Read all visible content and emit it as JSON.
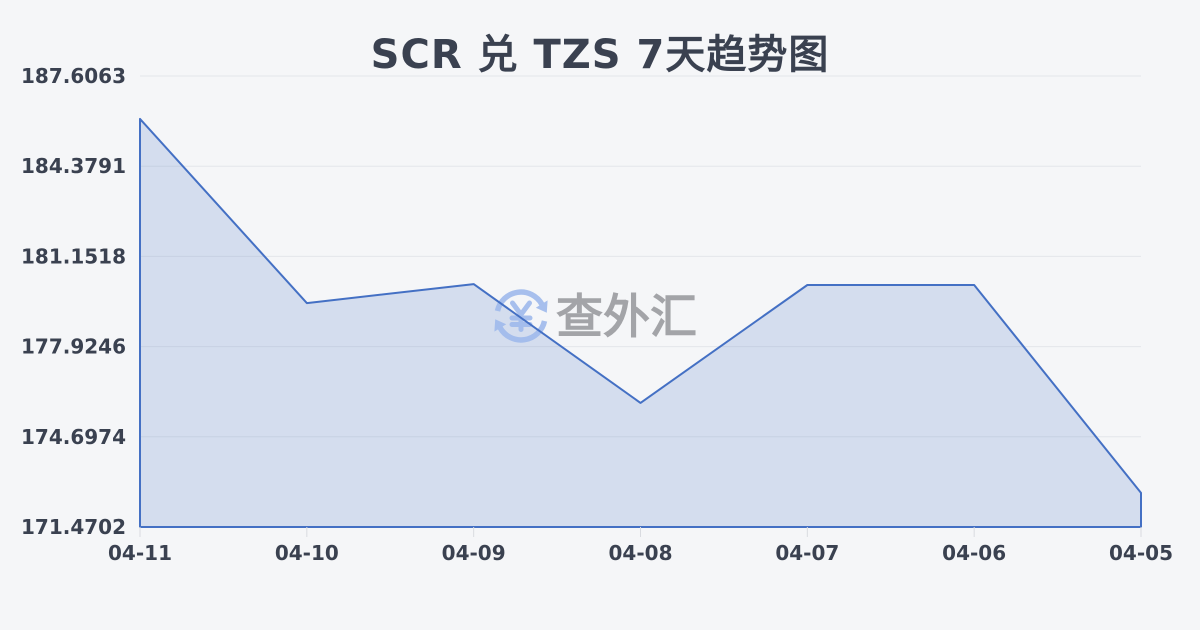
{
  "title": "SCR 兑 TZS 7天趋势图",
  "watermark": {
    "icon": "currency-exchange-icon",
    "text": "查外汇"
  },
  "chart_data": {
    "type": "area",
    "title": "SCR 兑 TZS 7天趋势图",
    "categories": [
      "04-11",
      "04-10",
      "04-09",
      "04-08",
      "04-07",
      "04-06",
      "04-05"
    ],
    "series": [
      {
        "name": "SCR/TZS",
        "values": [
          186.07,
          179.48,
          180.16,
          175.91,
          180.13,
          180.13,
          172.69
        ]
      }
    ],
    "xlabel": "",
    "ylabel": "",
    "ylim": [
      171.4702,
      187.6063
    ],
    "y_tick_labels": [
      "187.6063",
      "184.3791",
      "181.1518",
      "177.9246",
      "174.6974",
      "171.4702"
    ],
    "grid": true,
    "legend": "none"
  },
  "colors": {
    "background": "#f5f6f8",
    "text": "#3a4150",
    "grid": "#e4e6ea",
    "tick": "#d9dbe0",
    "line": "#4470c4",
    "area_fill": "rgba(68,112,196,0.18)",
    "watermark_icon": "#9fbaec",
    "watermark_text": "#9b9ca0"
  }
}
